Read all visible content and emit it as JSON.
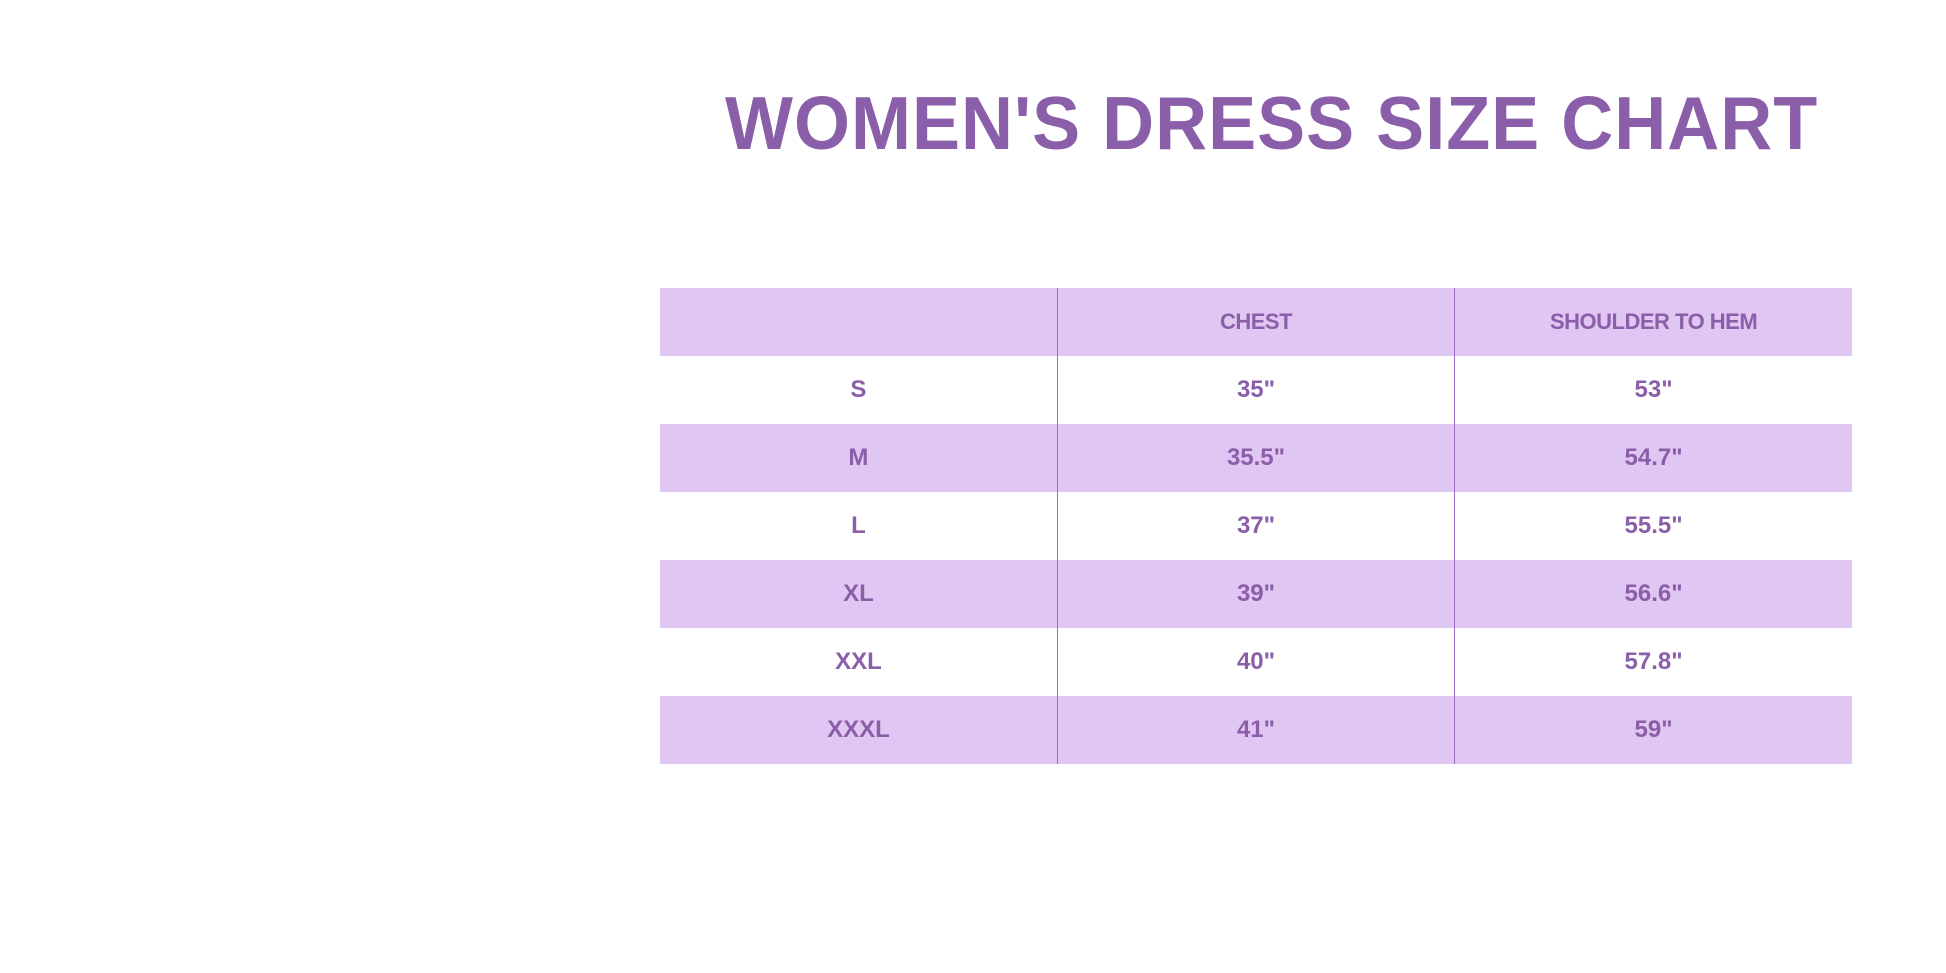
{
  "title": "WOMEN'S DRESS SIZE CHART",
  "colors": {
    "accent": "#8a5ea8",
    "row_shade": "#e0c6f2"
  },
  "table": {
    "headers": [
      "",
      "CHEST",
      "SHOULDER TO HEM"
    ],
    "rows": [
      [
        "S",
        "35\"",
        "53\""
      ],
      [
        "M",
        "35.5\"",
        "54.7\""
      ],
      [
        "L",
        "37\"",
        "55.5\""
      ],
      [
        "XL",
        "39\"",
        "56.6\""
      ],
      [
        "XXL",
        "40\"",
        "57.8\""
      ],
      [
        "XXXL",
        "41\"",
        "59\""
      ]
    ]
  }
}
